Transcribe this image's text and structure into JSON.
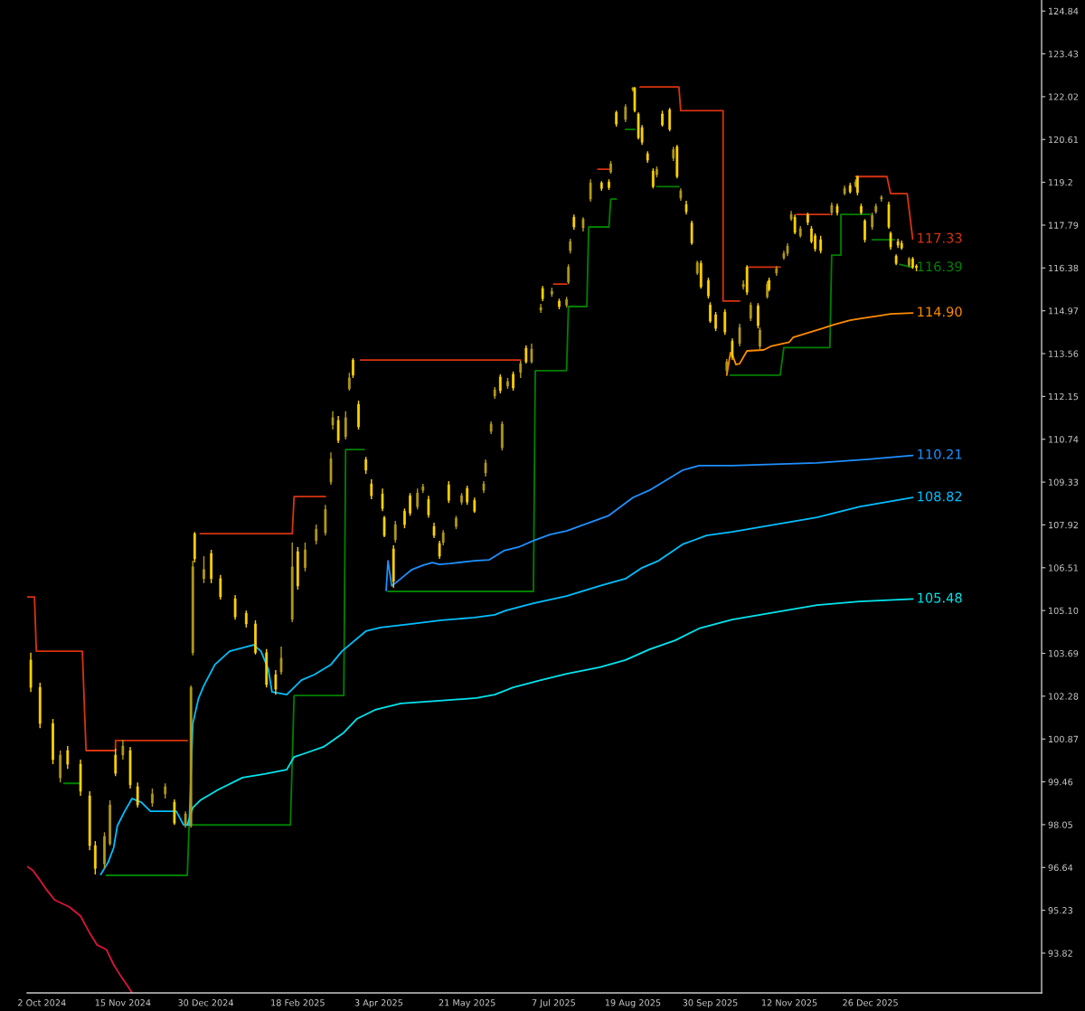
{
  "chart_data": {
    "type": "candlestick",
    "xlim": [
      "2024-09-24",
      "2026-03-29"
    ],
    "ylim": [
      92.51,
      125.2
    ],
    "xticks": [
      {
        "value": "2024-10-02",
        "label": "2 Oct 2024"
      },
      {
        "value": "2024-11-15",
        "label": "15 Nov 2024"
      },
      {
        "value": "2024-12-30",
        "label": "30 Dec 2024"
      },
      {
        "value": "2025-02-18",
        "label": "18 Feb 2025"
      },
      {
        "value": "2025-04-03",
        "label": "3 Apr 2025"
      },
      {
        "value": "2025-05-21",
        "label": "21 May 2025"
      },
      {
        "value": "2025-07-07",
        "label": "7 Jul 2025"
      },
      {
        "value": "2025-08-19",
        "label": "19 Aug 2025"
      },
      {
        "value": "2025-09-30",
        "label": "30 Sep 2025"
      },
      {
        "value": "2025-11-12",
        "label": "12 Nov 2025"
      },
      {
        "value": "2025-12-26",
        "label": "26 Dec 2025"
      }
    ],
    "yticks": [
      93.82,
      95.23,
      96.64,
      98.05,
      99.46,
      100.87,
      102.28,
      103.69,
      {
        "value": 105.1,
        "label": "105.10"
      },
      106.51,
      107.92,
      109.33,
      110.74,
      112.15,
      113.56,
      114.97,
      116.38,
      117.79,
      119.2,
      120.61,
      122.02,
      123.43,
      124.84
    ],
    "series": [
      {
        "type": "line",
        "color": "#dc143c",
        "x": [
          "2024-09-24",
          "2024-09-27",
          "2024-10-01",
          "2024-10-05",
          "2024-10-09",
          "2024-10-17",
          "2024-10-23",
          "2024-10-28",
          "2024-11-01",
          "2024-11-06",
          "2024-11-10",
          "2024-11-14",
          "2024-11-18",
          "2024-11-20"
        ],
        "values": [
          96.67,
          96.55,
          96.22,
          95.87,
          95.57,
          95.34,
          95.04,
          94.48,
          94.09,
          93.94,
          93.44,
          93.05,
          92.7,
          92.51
        ]
      },
      {
        "type": "line",
        "color": "#d8330f",
        "x": [
          "2024-09-24",
          "2024-09-28",
          "2024-09-29",
          "2024-10-24",
          "2024-10-26",
          "2024-11-11",
          "2024-11-11",
          "2024-12-20",
          null,
          "2024-12-27",
          "2025-02-15",
          "2025-02-16",
          "2025-03-05",
          null,
          "2025-03-24",
          "2025-06-19",
          null,
          "2025-07-07",
          "2025-07-14",
          null,
          "2025-07-31",
          "2025-08-06",
          null,
          "2025-08-23",
          "2025-09-13",
          "2025-09-14",
          "2025-10-07",
          "2025-10-07",
          "2025-10-16",
          null,
          "2025-10-21",
          "2025-11-07",
          null,
          "2025-11-16",
          "2025-12-04",
          null,
          "2025-12-18",
          "2026-01-04",
          "2026-01-06",
          "2026-01-15",
          "2026-01-18"
        ],
        "values": [
          105.55,
          105.55,
          103.76,
          103.76,
          100.49,
          100.49,
          100.82,
          100.82,
          null,
          107.63,
          107.63,
          108.85,
          108.85,
          null,
          113.35,
          113.35,
          null,
          115.85,
          115.85,
          null,
          119.63,
          119.63,
          null,
          122.34,
          122.34,
          121.56,
          121.56,
          115.29,
          115.29,
          null,
          116.41,
          116.41,
          null,
          118.14,
          118.14,
          null,
          119.39,
          119.39,
          118.83,
          118.83,
          117.33
        ],
        "value_labels": [
          null,
          null,
          null,
          null,
          null,
          null,
          null,
          null,
          null,
          null,
          null,
          null,
          null,
          null,
          null,
          null,
          null,
          null,
          null,
          null,
          null,
          null,
          null,
          null,
          null,
          null,
          null,
          null,
          null,
          null,
          null,
          null,
          null,
          null,
          null,
          null,
          null,
          null,
          null,
          null,
          "117.33"
        ]
      },
      {
        "type": "line",
        "color": "#008000",
        "x": [
          "2024-10-14",
          "2024-10-23",
          null,
          "2024-11-06",
          "2024-12-20",
          "2024-12-21",
          "2025-02-14",
          "2025-02-16",
          "2025-03-15",
          "2025-03-16",
          "2025-03-26",
          null,
          "2025-04-08",
          "2025-06-26",
          "2025-06-27",
          "2025-07-14",
          "2025-07-15",
          "2025-07-25",
          "2025-07-26",
          "2025-08-06",
          "2025-08-07",
          "2025-08-10",
          null,
          "2025-08-15",
          "2025-08-20",
          null,
          "2025-09-01",
          "2025-09-13",
          null,
          "2025-10-11",
          "2025-11-07",
          "2025-11-09",
          "2025-12-04",
          "2025-12-05",
          "2025-12-10",
          "2025-12-10",
          "2025-12-26",
          null,
          "2025-12-27",
          "2026-01-08",
          null,
          "2026-01-11",
          "2026-01-18"
        ],
        "values": [
          99.41,
          99.41,
          null,
          96.38,
          96.38,
          98.04,
          98.04,
          102.3,
          102.3,
          110.4,
          110.4,
          null,
          105.73,
          105.73,
          113.0,
          113.0,
          115.11,
          115.11,
          117.73,
          117.73,
          118.65,
          118.65,
          null,
          120.94,
          120.94,
          null,
          119.06,
          119.06,
          null,
          112.85,
          112.85,
          113.76,
          113.76,
          116.8,
          116.8,
          118.14,
          118.14,
          null,
          117.31,
          117.31,
          null,
          116.5,
          116.39
        ],
        "value_labels": [
          null,
          null,
          null,
          null,
          null,
          null,
          null,
          null,
          null,
          null,
          null,
          null,
          null,
          null,
          null,
          null,
          null,
          null,
          null,
          null,
          null,
          null,
          null,
          null,
          null,
          null,
          null,
          null,
          null,
          null,
          null,
          null,
          null,
          null,
          null,
          null,
          null,
          null,
          null,
          null,
          null,
          null,
          "116.39"
        ]
      },
      {
        "type": "line",
        "color": "#ff8c00",
        "x": [
          "2025-10-09",
          "2025-10-11",
          "2025-10-12",
          "2025-10-14",
          "2025-10-16",
          "2025-10-18",
          "2025-10-20",
          "2025-10-29",
          "2025-11-02",
          "2025-11-12",
          "2025-11-14",
          "2025-11-22",
          "2025-11-30",
          "2025-12-06",
          "2025-12-15",
          "2025-12-21",
          "2025-12-31",
          "2026-01-06",
          "2026-01-18"
        ],
        "values": [
          112.85,
          113.59,
          113.53,
          113.2,
          113.23,
          113.44,
          113.65,
          113.68,
          113.8,
          113.94,
          114.09,
          114.24,
          114.39,
          114.51,
          114.66,
          114.72,
          114.81,
          114.87,
          114.9
        ],
        "value_labels": [
          null,
          null,
          null,
          null,
          null,
          null,
          null,
          null,
          null,
          null,
          null,
          null,
          null,
          null,
          null,
          null,
          null,
          null,
          "114.90"
        ]
      },
      {
        "type": "line",
        "color": "#1e90ff",
        "x": [
          "2025-04-07",
          "2025-04-08",
          "2025-04-10",
          "2025-04-15",
          "2025-04-21",
          "2025-04-27",
          "2025-05-02",
          "2025-05-06",
          "2025-05-12",
          "2025-05-25",
          "2025-06-02",
          "2025-06-10",
          "2025-06-18",
          "2025-06-26",
          "2025-07-05",
          "2025-07-14",
          "2025-08-06",
          "2025-08-19",
          "2025-08-28",
          "2025-09-15",
          "2025-09-24",
          "2025-10-12",
          "2025-11-27",
          "2025-12-25",
          "2026-01-18"
        ],
        "values": [
          105.76,
          106.74,
          105.91,
          106.15,
          106.45,
          106.59,
          106.68,
          106.62,
          106.65,
          106.74,
          106.77,
          107.07,
          107.19,
          107.4,
          107.6,
          107.72,
          108.23,
          108.82,
          109.06,
          109.72,
          109.87,
          109.87,
          109.96,
          110.08,
          110.21
        ],
        "value_labels": [
          null,
          null,
          null,
          null,
          null,
          null,
          null,
          null,
          null,
          null,
          null,
          null,
          null,
          null,
          null,
          null,
          null,
          null,
          null,
          null,
          null,
          null,
          null,
          null,
          "110.21"
        ]
      },
      {
        "type": "line",
        "color": "#00bfff",
        "x": [
          "2024-11-03",
          "2024-11-05",
          "2024-11-07",
          "2024-11-10",
          "2024-11-12",
          "2024-11-16",
          "2024-11-20",
          "2024-11-25",
          "2024-11-30",
          "2024-12-14",
          "2024-12-18",
          "2024-12-21",
          "2024-12-23",
          "2024-12-26",
          "2024-12-29",
          "2025-01-04",
          "2025-01-12",
          "2025-01-25",
          "2025-01-29",
          "2025-02-02",
          "2025-02-04",
          "2025-02-12",
          "2025-02-20",
          "2025-02-27",
          "2025-03-08",
          "2025-03-14",
          "2025-03-27",
          "2025-04-04",
          "2025-04-21",
          "2025-05-07",
          "2025-05-25",
          "2025-06-05",
          "2025-06-11",
          "2025-06-26",
          "2025-07-14",
          "2025-08-01",
          "2025-08-15",
          "2025-08-24",
          "2025-09-02",
          "2025-09-15",
          "2025-09-28",
          "2025-10-12",
          "2025-11-04",
          "2025-11-27",
          "2025-12-20",
          "2026-01-18"
        ],
        "values": [
          96.41,
          96.61,
          96.81,
          97.29,
          98.01,
          98.49,
          98.91,
          98.79,
          98.49,
          98.49,
          98.04,
          98.04,
          101.38,
          102.19,
          102.63,
          103.32,
          103.76,
          103.97,
          103.76,
          103.17,
          102.42,
          102.33,
          102.81,
          102.99,
          103.32,
          103.76,
          104.42,
          104.54,
          104.66,
          104.78,
          104.87,
          104.96,
          105.1,
          105.34,
          105.58,
          105.91,
          106.15,
          106.51,
          106.74,
          107.28,
          107.57,
          107.69,
          107.93,
          108.17,
          108.52,
          108.82
        ],
        "value_labels": [
          null,
          null,
          null,
          null,
          null,
          null,
          null,
          null,
          null,
          null,
          null,
          null,
          null,
          null,
          null,
          null,
          null,
          null,
          null,
          null,
          null,
          null,
          null,
          null,
          null,
          null,
          null,
          null,
          null,
          null,
          null,
          null,
          null,
          null,
          null,
          null,
          null,
          null,
          null,
          null,
          null,
          null,
          null,
          null,
          null,
          "108.82"
        ]
      },
      {
        "type": "line",
        "color": "#00e5ee",
        "x": [
          "2024-12-20",
          "2024-12-23",
          "2024-12-27",
          "2025-01-06",
          "2025-01-19",
          "2025-01-31",
          "2025-02-12",
          "2025-02-16",
          "2025-02-22",
          "2025-03-04",
          "2025-03-15",
          "2025-03-22",
          "2025-04-01",
          "2025-04-15",
          "2025-05-06",
          "2025-05-26",
          "2025-06-05",
          "2025-06-15",
          "2025-06-30",
          "2025-07-14",
          "2025-08-01",
          "2025-08-15",
          "2025-08-28",
          "2025-09-11",
          "2025-09-24",
          "2025-10-12",
          "2025-11-04",
          "2025-11-27",
          "2025-12-20",
          "2026-01-18"
        ],
        "values": [
          98.04,
          98.61,
          98.85,
          99.21,
          99.6,
          99.72,
          99.86,
          100.28,
          100.4,
          100.61,
          101.08,
          101.53,
          101.83,
          102.04,
          102.13,
          102.22,
          102.33,
          102.57,
          102.81,
          103.02,
          103.23,
          103.47,
          103.82,
          104.12,
          104.51,
          104.8,
          105.04,
          105.28,
          105.4,
          105.48
        ],
        "value_labels": [
          null,
          null,
          null,
          null,
          null,
          null,
          null,
          null,
          null,
          null,
          null,
          null,
          null,
          null,
          null,
          null,
          null,
          null,
          null,
          null,
          null,
          null,
          null,
          null,
          null,
          null,
          null,
          null,
          null,
          "105.48"
        ]
      },
      {
        "x": [
          "2024-09-26",
          "2024-10-01",
          "2024-10-08",
          "2024-10-12",
          "2024-10-16",
          "2024-10-23",
          "2024-10-28",
          "2024-10-31",
          "2024-11-05",
          "2024-11-08",
          "2024-11-11",
          "2024-11-15",
          "2024-11-19",
          "2024-11-23",
          "2024-12-01",
          "2024-12-08",
          "2024-12-13",
          "2024-12-19",
          "2024-12-22",
          "2024-12-23",
          "2024-12-24",
          "2024-12-29",
          "2025-01-02",
          "2025-01-07",
          "2025-01-15",
          "2025-01-21",
          "2025-01-26",
          "2025-02-01",
          "2025-02-06",
          "2025-02-09",
          "2025-02-15",
          "2025-02-18",
          "2025-02-22",
          "2025-02-28",
          "2025-03-05",
          "2025-03-08",
          "2025-03-09",
          "2025-03-12",
          "2025-03-16",
          "2025-03-18",
          "2025-03-20",
          "2025-03-23",
          "2025-03-27",
          "2025-03-30",
          "2025-04-05",
          "2025-04-06",
          "2025-04-11",
          "2025-04-12",
          "2025-04-17",
          "2025-04-20",
          "2025-04-24",
          "2025-04-27",
          "2025-04-30",
          "2025-05-03",
          "2025-05-06",
          "2025-05-08",
          "2025-05-11",
          "2025-05-15",
          "2025-05-18",
          "2025-05-21",
          "2025-05-25",
          "2025-05-30",
          "2025-05-31",
          "2025-06-03",
          "2025-06-05",
          "2025-06-08",
          "2025-06-09",
          "2025-06-12",
          "2025-06-15",
          "2025-06-19",
          "2025-06-22",
          "2025-06-25",
          "2025-06-30",
          "2025-07-01",
          "2025-07-06",
          "2025-07-10",
          "2025-07-14",
          "2025-07-15",
          "2025-07-16",
          "2025-07-18",
          "2025-07-23",
          "2025-07-27",
          "2025-08-02",
          "2025-08-06",
          "2025-08-07",
          "2025-08-10",
          "2025-08-15",
          "2025-08-19",
          "2025-08-20",
          "2025-08-22",
          "2025-08-24",
          "2025-08-27",
          "2025-08-30",
          "2025-09-01",
          "2025-09-04",
          "2025-09-08",
          "2025-09-10",
          "2025-09-12",
          "2025-09-14",
          "2025-09-17",
          "2025-09-20",
          "2025-09-23",
          "2025-09-25",
          "2025-09-29",
          "2025-09-30",
          "2025-10-03",
          "2025-10-08",
          "2025-10-09",
          "2025-10-12",
          "2025-10-16",
          "2025-10-18",
          "2025-10-20",
          "2025-10-22",
          "2025-10-26",
          "2025-10-27",
          "2025-10-31",
          "2025-11-01",
          "2025-11-05",
          "2025-11-09",
          "2025-11-11",
          "2025-11-13",
          "2025-11-15",
          "2025-11-18",
          "2025-11-22",
          "2025-11-24",
          "2025-11-26",
          "2025-11-29",
          "2025-12-05",
          "2025-12-08",
          "2025-12-12",
          "2025-12-15",
          "2025-12-18",
          "2025-12-19",
          "2025-12-21",
          "2025-12-23",
          "2025-12-27",
          "2025-12-29",
          "2026-01-01",
          "2026-01-05",
          "2026-01-06",
          "2026-01-09",
          "2026-01-10",
          "2026-01-12",
          "2026-01-16",
          "2026-01-18",
          "2026-01-20"
        ],
        "ohlc": [
          [
            103.47,
            103.71,
            102.42,
            102.57
          ],
          [
            102.57,
            102.72,
            101.23,
            101.38
          ],
          [
            101.38,
            101.53,
            100.04,
            100.19
          ],
          [
            99.59,
            100.49,
            99.44,
            100.34
          ],
          [
            100.49,
            100.64,
            99.89,
            100.04
          ],
          [
            100.04,
            100.19,
            99.0,
            99.15
          ],
          [
            99.0,
            99.15,
            97.21,
            97.36
          ],
          [
            97.36,
            97.51,
            96.41,
            96.61
          ],
          [
            96.76,
            97.8,
            96.61,
            97.66
          ],
          [
            97.42,
            98.85,
            97.36,
            98.7
          ],
          [
            100.34,
            100.55,
            99.65,
            99.74
          ],
          [
            100.34,
            100.84,
            100.19,
            100.64
          ],
          [
            100.49,
            100.61,
            99.24,
            99.36
          ],
          [
            99.3,
            99.44,
            98.61,
            98.7
          ],
          [
            98.76,
            99.24,
            98.64,
            99.06
          ],
          [
            99.06,
            99.41,
            98.91,
            99.3
          ],
          [
            98.79,
            98.88,
            98.04,
            98.1
          ],
          [
            98.04,
            98.49,
            97.95,
            98.4
          ],
          [
            98.01,
            102.63,
            97.95,
            102.57
          ],
          [
            103.71,
            106.74,
            103.62,
            106.54
          ],
          [
            107.63,
            107.69,
            106.68,
            106.8
          ],
          [
            106.15,
            106.89,
            106.0,
            106.45
          ],
          [
            106.98,
            107.1,
            106.0,
            106.15
          ],
          [
            106.15,
            106.27,
            105.46,
            105.55
          ],
          [
            105.49,
            105.61,
            104.8,
            104.89
          ],
          [
            105.01,
            105.1,
            104.54,
            104.66
          ],
          [
            104.66,
            104.78,
            103.65,
            103.71
          ],
          [
            103.71,
            103.83,
            102.57,
            102.66
          ],
          [
            102.99,
            103.14,
            102.33,
            102.51
          ],
          [
            103.08,
            103.91,
            102.99,
            103.53
          ],
          [
            104.81,
            107.34,
            104.72,
            106.54
          ],
          [
            107.04,
            107.19,
            105.79,
            105.91
          ],
          [
            106.51,
            107.34,
            106.39,
            107.1
          ],
          [
            107.4,
            107.93,
            107.28,
            107.78
          ],
          [
            107.66,
            108.58,
            107.57,
            108.43
          ],
          [
            109.33,
            110.31,
            109.24,
            110.1
          ],
          [
            111.21,
            111.66,
            111.06,
            111.45
          ],
          [
            111.36,
            111.51,
            110.61,
            110.7
          ],
          [
            110.82,
            111.66,
            110.73,
            111.45
          ],
          [
            112.4,
            112.93,
            112.34,
            112.76
          ],
          [
            113.35,
            113.41,
            112.76,
            112.85
          ],
          [
            111.89,
            112.01,
            111.06,
            111.15
          ],
          [
            110.07,
            110.16,
            109.6,
            109.72
          ],
          [
            109.27,
            109.42,
            108.77,
            108.88
          ],
          [
            108.94,
            109.12,
            108.37,
            108.46
          ],
          [
            108.16,
            108.22,
            107.52,
            107.57
          ],
          [
            107.13,
            107.25,
            105.85,
            106.06
          ],
          [
            107.43,
            108.05,
            107.34,
            107.93
          ],
          [
            108.37,
            108.46,
            107.81,
            107.93
          ],
          [
            108.88,
            108.97,
            108.22,
            108.31
          ],
          [
            108.52,
            109.12,
            108.43,
            108.97
          ],
          [
            109.06,
            109.27,
            108.97,
            109.18
          ],
          [
            108.76,
            108.88,
            108.16,
            108.25
          ],
          [
            107.87,
            107.99,
            107.49,
            107.57
          ],
          [
            107.31,
            107.4,
            106.8,
            106.89
          ],
          [
            107.34,
            107.75,
            107.25,
            107.66
          ],
          [
            109.24,
            109.36,
            108.64,
            108.73
          ],
          [
            107.87,
            108.22,
            107.78,
            108.14
          ],
          [
            108.67,
            108.97,
            108.58,
            108.88
          ],
          [
            109.12,
            109.21,
            108.58,
            108.67
          ],
          [
            108.73,
            108.82,
            108.31,
            108.37
          ],
          [
            109.06,
            109.36,
            108.97,
            109.27
          ],
          [
            109.63,
            110.07,
            109.51,
            109.96
          ],
          [
            111.0,
            111.33,
            110.91,
            111.24
          ],
          [
            112.16,
            112.46,
            112.07,
            112.37
          ],
          [
            112.79,
            112.88,
            112.25,
            112.34
          ],
          [
            110.46,
            111.33,
            110.37,
            111.24
          ],
          [
            112.49,
            112.76,
            112.4,
            112.64
          ],
          [
            112.88,
            112.97,
            112.34,
            112.43
          ],
          [
            112.94,
            113.32,
            112.76,
            113.23
          ],
          [
            113.74,
            113.83,
            113.23,
            113.29
          ],
          [
            113.29,
            113.89,
            113.23,
            113.71
          ],
          [
            114.99,
            115.2,
            114.9,
            115.08
          ],
          [
            115.7,
            115.79,
            115.29,
            115.37
          ],
          [
            115.52,
            115.73,
            115.43,
            115.61
          ],
          [
            115.29,
            115.37,
            115.02,
            115.11
          ],
          [
            115.16,
            115.43,
            115.08,
            115.34
          ],
          [
            115.91,
            116.5,
            115.85,
            116.41
          ],
          [
            116.95,
            117.34,
            116.86,
            117.25
          ],
          [
            118.05,
            118.14,
            117.64,
            117.73
          ],
          [
            117.7,
            118.05,
            117.58,
            117.99
          ],
          [
            118.65,
            119.3,
            118.56,
            119.18
          ],
          [
            119.18,
            119.24,
            118.92,
            119.0
          ],
          [
            119.21,
            119.3,
            118.95,
            119.03
          ],
          [
            119.54,
            119.9,
            119.48,
            119.81
          ],
          [
            121.5,
            121.56,
            121.03,
            121.12
          ],
          [
            121.27,
            121.77,
            121.18,
            121.68
          ],
          [
            122.25,
            122.34,
            122.19,
            122.31
          ],
          [
            122.31,
            122.34,
            121.5,
            121.56
          ],
          [
            121.45,
            121.5,
            120.61,
            120.67
          ],
          [
            121.0,
            121.09,
            120.43,
            120.52
          ],
          [
            120.14,
            120.22,
            119.84,
            119.93
          ],
          [
            119.57,
            119.66,
            119.0,
            119.06
          ],
          [
            119.45,
            119.72,
            119.36,
            119.63
          ],
          [
            121.45,
            121.56,
            121.03,
            121.09
          ],
          [
            121.59,
            121.65,
            120.88,
            120.94
          ],
          [
            120.0,
            120.37,
            119.9,
            120.28
          ],
          [
            120.37,
            120.43,
            119.33,
            119.39
          ],
          [
            118.68,
            119.0,
            118.59,
            118.92
          ],
          [
            118.47,
            118.59,
            118.14,
            118.23
          ],
          [
            117.86,
            117.94,
            117.14,
            117.2
          ],
          [
            116.21,
            116.62,
            116.15,
            116.56
          ],
          [
            116.53,
            116.62,
            115.7,
            115.76
          ],
          [
            115.97,
            116.06,
            115.37,
            115.46
          ],
          [
            115.16,
            115.25,
            114.57,
            114.63
          ],
          [
            114.84,
            114.93,
            114.3,
            114.39
          ],
          [
            114.93,
            115.02,
            114.18,
            114.27
          ],
          [
            113.0,
            113.38,
            112.91,
            113.29
          ],
          [
            113.97,
            114.06,
            113.35,
            113.44
          ],
          [
            113.89,
            114.54,
            113.8,
            114.42
          ],
          [
            115.76,
            115.97,
            115.67,
            115.85
          ],
          [
            116.41,
            116.47,
            115.49,
            115.58
          ],
          [
            114.72,
            115.25,
            114.63,
            115.16
          ],
          [
            115.13,
            115.22,
            114.39,
            114.48
          ],
          [
            113.8,
            114.42,
            113.71,
            114.33
          ],
          [
            115.43,
            115.94,
            115.37,
            115.85
          ],
          [
            115.97,
            116.06,
            115.61,
            115.67
          ],
          [
            116.21,
            116.44,
            116.12,
            116.36
          ],
          [
            116.71,
            116.95,
            116.65,
            116.86
          ],
          [
            116.86,
            117.19,
            116.77,
            117.1
          ],
          [
            117.99,
            118.26,
            117.93,
            118.14
          ],
          [
            118.05,
            118.14,
            117.49,
            117.55
          ],
          [
            117.44,
            117.76,
            117.38,
            117.67
          ],
          [
            118.14,
            118.2,
            117.79,
            117.88
          ],
          [
            117.67,
            117.76,
            117.19,
            117.25
          ],
          [
            117.44,
            117.52,
            116.92,
            117.01
          ],
          [
            117.31,
            117.44,
            116.86,
            116.95
          ],
          [
            118.2,
            118.53,
            118.11,
            118.44
          ],
          [
            118.41,
            118.5,
            118.11,
            118.2
          ],
          [
            118.83,
            119.09,
            118.77,
            119.0
          ],
          [
            119.09,
            119.18,
            118.83,
            118.89
          ],
          [
            119.09,
            119.3,
            119.03,
            119.21
          ],
          [
            119.39,
            119.42,
            118.77,
            118.86
          ],
          [
            118.41,
            118.5,
            118.14,
            118.2
          ],
          [
            117.93,
            117.99,
            117.22,
            117.31
          ],
          [
            117.73,
            118.2,
            117.64,
            118.11
          ],
          [
            118.23,
            118.5,
            118.17,
            118.41
          ],
          [
            118.65,
            118.77,
            118.56,
            118.71
          ],
          [
            118.47,
            118.56,
            117.67,
            117.73
          ],
          [
            117.52,
            117.58,
            116.98,
            117.07
          ],
          [
            116.77,
            116.83,
            116.47,
            116.53
          ],
          [
            117.25,
            117.34,
            117.04,
            117.13
          ],
          [
            117.19,
            117.28,
            116.98,
            117.04
          ],
          [
            116.47,
            116.74,
            116.41,
            116.68
          ],
          [
            116.68,
            116.74,
            116.35,
            116.41
          ],
          [
            116.44,
            116.5,
            116.27,
            116.39
          ]
        ],
        "colors": [
          "#ffd400",
          "#ffd400",
          "#ffd400",
          "#b39a1a",
          "#ffd400",
          "#ffd400",
          "#ffd400",
          "#ffd400",
          "#b39a1a",
          "#b39a1a",
          "#ffd400",
          "#b39a1a",
          "#ffd400",
          "#ffd400",
          "#b39a1a",
          "#b39a1a",
          "#ffd400",
          "#b39a1a",
          "#b39a1a",
          "#b39a1a",
          "#ffd400",
          "#b39a1a",
          "#ffd400",
          "#ffd400",
          "#ffd400",
          "#ffd400",
          "#ffd400",
          "#ffd400",
          "#ffd400",
          "#b39a1a",
          "#b39a1a",
          "#ffd400",
          "#b39a1a",
          "#b39a1a",
          "#b39a1a",
          "#b39a1a",
          "#b39a1a",
          "#ffd400",
          "#b39a1a",
          "#b39a1a",
          "#ffd400",
          "#ffd400",
          "#ffd400",
          "#ffd400",
          "#ffd400",
          "#ffd400",
          "#ffd400",
          "#b39a1a",
          "#ffd400",
          "#ffd400",
          "#b39a1a",
          "#b39a1a",
          "#ffd400",
          "#ffd400",
          "#ffd400",
          "#b39a1a",
          "#ffd400",
          "#b39a1a",
          "#b39a1a",
          "#ffd400",
          "#ffd400",
          "#b39a1a",
          "#b39a1a",
          "#b39a1a",
          "#b39a1a",
          "#ffd400",
          "#b39a1a",
          "#b39a1a",
          "#ffd400",
          "#b39a1a",
          "#ffd400",
          "#b39a1a",
          "#b39a1a",
          "#ffd400",
          "#b39a1a",
          "#ffd400",
          "#b39a1a",
          "#b39a1a",
          "#b39a1a",
          "#ffd400",
          "#b39a1a",
          "#b39a1a",
          "#ffd400",
          "#ffd400",
          "#b39a1a",
          "#ffd400",
          "#b39a1a",
          "#b39a1a",
          "#ffd400",
          "#ffd400",
          "#ffd400",
          "#ffd400",
          "#ffd400",
          "#b39a1a",
          "#ffd400",
          "#ffd400",
          "#b39a1a",
          "#ffd400",
          "#b39a1a",
          "#ffd400",
          "#ffd400",
          "#b39a1a",
          "#ffd400",
          "#ffd400",
          "#ffd400",
          "#ffd400",
          "#ffd400",
          "#b39a1a",
          "#ffd400",
          "#b39a1a",
          "#b39a1a",
          "#ffd400",
          "#b39a1a",
          "#ffd400",
          "#b39a1a",
          "#b39a1a",
          "#ffd400",
          "#b39a1a",
          "#b39a1a",
          "#b39a1a",
          "#b39a1a",
          "#ffd400",
          "#b39a1a",
          "#ffd400",
          "#ffd400",
          "#ffd400",
          "#ffd400",
          "#b39a1a",
          "#ffd400",
          "#b39a1a",
          "#ffd400",
          "#b39a1a",
          "#ffd400",
          "#ffd400",
          "#ffd400",
          "#b39a1a",
          "#b39a1a",
          "#b39a1a",
          "#ffd400",
          "#ffd400",
          "#ffd400",
          "#ffd400",
          "#ffd400",
          "#b39a1a",
          "#ffd400",
          "#ffd400"
        ]
      }
    ]
  }
}
